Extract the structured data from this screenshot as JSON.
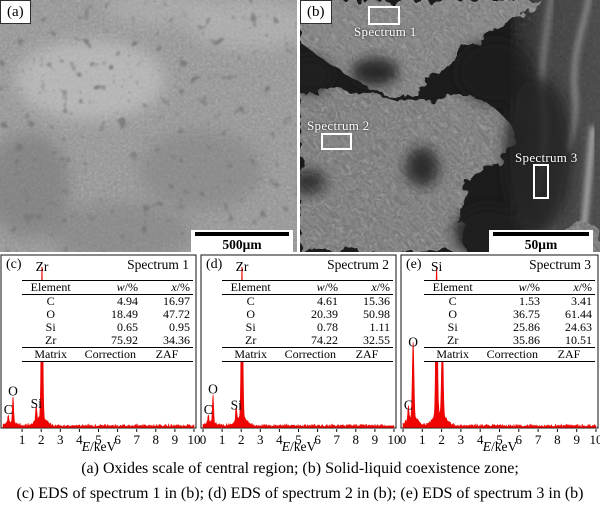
{
  "sem_a": {
    "label": "(a)",
    "scale_bar_label": "500μm"
  },
  "sem_b": {
    "label": "(b)",
    "scale_bar_label": "50μm",
    "annotations": [
      {
        "text": "Spectrum 1"
      },
      {
        "text": "Spectrum 2"
      },
      {
        "text": "Spectrum 3"
      }
    ]
  },
  "caption": {
    "line1": "(a) Oxides scale of central region; (b) Solid-liquid coexistence zone;",
    "line2": "(c) EDS of spectrum 1 in (b); (d) EDS of spectrum 2 in (b); (e) EDS of spectrum 3 in (b)"
  },
  "chart_data": [
    {
      "type": "line",
      "panel_label": "(c)",
      "title": "Spectrum 1",
      "xlabel": "E/keV",
      "xlabel_italic": "E",
      "xlabel_rest": "/keV",
      "xlim": [
        0,
        10
      ],
      "x_ticks": [
        1,
        2,
        3,
        4,
        5,
        6,
        7,
        8,
        9,
        10
      ],
      "line_color": "#ee0400",
      "grid": false,
      "peaks": [
        {
          "element": "C",
          "keV": 0.28,
          "rel_height": 0.05
        },
        {
          "element": "O",
          "keV": 0.525,
          "rel_height": 0.17
        },
        {
          "element": "Si",
          "keV": 1.74,
          "rel_height": 0.09
        },
        {
          "element": "Zr",
          "keV": 2.04,
          "rel_height": 1.0
        }
      ],
      "table": {
        "headers": [
          "Element",
          "w/%",
          "x/%"
        ],
        "rows": [
          [
            "C",
            "4.94",
            "16.97"
          ],
          [
            "O",
            "18.49",
            "47.72"
          ],
          [
            "Si",
            "0.65",
            "0.95"
          ],
          [
            "Zr",
            "75.92",
            "34.36"
          ]
        ],
        "footer": [
          "Matrix",
          "Correction",
          "ZAF"
        ]
      }
    },
    {
      "type": "line",
      "panel_label": "(d)",
      "title": "Spectrum 2",
      "xlabel": "E/keV",
      "xlabel_italic": "E",
      "xlabel_rest": "/keV",
      "xlim": [
        0,
        10
      ],
      "x_ticks": [
        0,
        1,
        2,
        3,
        4,
        5,
        6,
        7,
        8,
        9,
        10
      ],
      "line_color": "#ee0400",
      "grid": false,
      "peaks": [
        {
          "element": "C",
          "keV": 0.28,
          "rel_height": 0.05
        },
        {
          "element": "O",
          "keV": 0.525,
          "rel_height": 0.18
        },
        {
          "element": "Si",
          "keV": 1.74,
          "rel_height": 0.08
        },
        {
          "element": "Zr",
          "keV": 2.04,
          "rel_height": 1.0
        }
      ],
      "table": {
        "headers": [
          "Element",
          "w/%",
          "x/%"
        ],
        "rows": [
          [
            "C",
            "4.61",
            "15.36"
          ],
          [
            "O",
            "20.39",
            "50.98"
          ],
          [
            "Si",
            "0.78",
            "1.11"
          ],
          [
            "Zr",
            "74.22",
            "32.55"
          ]
        ],
        "footer": [
          "Matrix",
          "Correction",
          "ZAF"
        ]
      }
    },
    {
      "type": "line",
      "panel_label": "(e)",
      "title": "Spectrum 3",
      "xlabel": "E/keV",
      "xlabel_italic": "E",
      "xlabel_rest": "/keV",
      "xlim": [
        0,
        10
      ],
      "x_ticks": [
        0,
        1,
        2,
        3,
        4,
        5,
        6,
        7,
        8,
        9,
        10
      ],
      "line_color": "#ee0400",
      "grid": false,
      "peaks": [
        {
          "element": "C",
          "keV": 0.28,
          "rel_height": 0.08
        },
        {
          "element": "O",
          "keV": 0.525,
          "rel_height": 0.48
        },
        {
          "element": "Si",
          "keV": 1.74,
          "rel_height": 1.0
        },
        {
          "element": "Zr",
          "keV": 2.04,
          "rel_height": 0.5
        }
      ],
      "table": {
        "headers": [
          "Element",
          "w/%",
          "x/%"
        ],
        "rows": [
          [
            "C",
            "1.53",
            "3.41"
          ],
          [
            "O",
            "36.75",
            "61.44"
          ],
          [
            "Si",
            "25.86",
            "24.63"
          ],
          [
            "Zr",
            "35.86",
            "10.51"
          ]
        ],
        "footer": [
          "Matrix",
          "Correction",
          "ZAF"
        ]
      }
    }
  ]
}
